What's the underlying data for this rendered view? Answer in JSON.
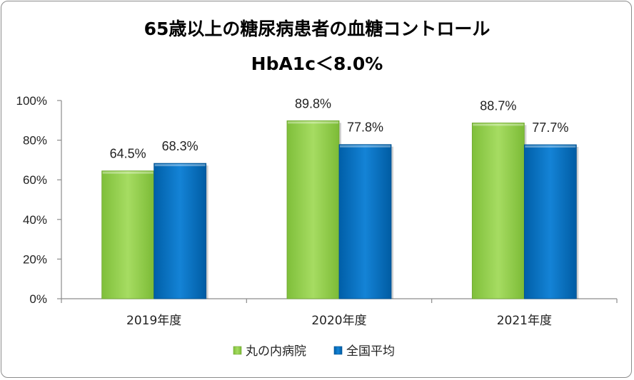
{
  "chart_data": {
    "type": "bar",
    "title": "65歳以上の糖尿病患者の血糖コントロール",
    "subtitle": "HbA1c＜8.0%",
    "categories": [
      "2019年度",
      "2020年度",
      "2021年度"
    ],
    "series": [
      {
        "name": "丸の内病院",
        "values": [
          64.5,
          89.8,
          88.7
        ],
        "labels": [
          "64.5%",
          "89.8%",
          "88.7%"
        ],
        "color": "#92d050"
      },
      {
        "name": "全国平均",
        "values": [
          68.3,
          77.8,
          77.7
        ],
        "labels": [
          "68.3%",
          "77.8%",
          "77.7%"
        ],
        "color": "#0070c0"
      }
    ],
    "ylim": [
      0,
      100
    ],
    "yticks": [
      0,
      20,
      40,
      60,
      80,
      100
    ],
    "ytick_labels": [
      "0%",
      "20%",
      "40%",
      "60%",
      "80%",
      "100%"
    ],
    "grid": false,
    "legend": "bottom"
  }
}
